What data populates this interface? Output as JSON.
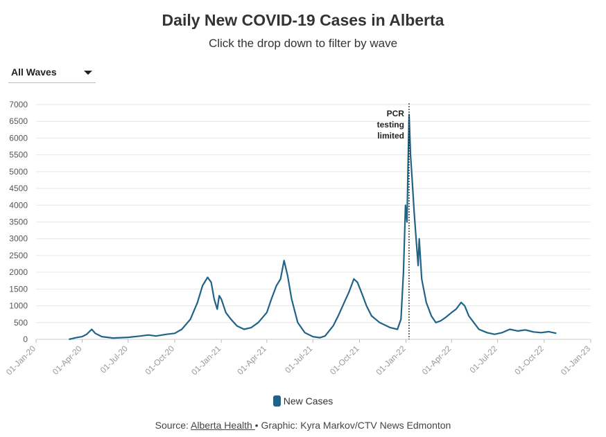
{
  "title": "Daily New COVID-19 Cases in Alberta",
  "subtitle": "Click the drop down to filter by wave",
  "dropdown": {
    "selected": "All Waves"
  },
  "legend": {
    "label": "New Cases"
  },
  "source": {
    "prefix": "Source: ",
    "link_text": "Alberta Health ",
    "suffix": "• Graphic: Kyra Markov/CTV News Edmonton"
  },
  "colors": {
    "series": "#1f6386",
    "grid": "#e6e6e6",
    "annotation_line": "#222222"
  },
  "chart_data": {
    "type": "line",
    "title": "Daily New COVID-19 Cases in Alberta",
    "series_name": "New Cases",
    "ylim": [
      0,
      7000
    ],
    "y_ticks": [
      0,
      500,
      1000,
      1500,
      2000,
      2500,
      3000,
      3500,
      4000,
      4500,
      5000,
      5500,
      6000,
      6500,
      7000
    ],
    "x_ticks": [
      "01-Jan-20",
      "01-Apr-20",
      "01-Jul-20",
      "01-Oct-20",
      "01-Jan-21",
      "01-Apr-21",
      "01-Jul-21",
      "01-Oct-21",
      "01-Jan-22",
      "01-Apr-22",
      "01-Jul-22",
      "01-Oct-22",
      "01-Jan-23"
    ],
    "grid": true,
    "legend_position": "bottom",
    "annotation": {
      "date": "2022-01-07",
      "lines": [
        "PCR",
        "testing",
        "limited"
      ]
    },
    "points": [
      [
        "2020-03-06",
        0
      ],
      [
        "2020-03-20",
        50
      ],
      [
        "2020-04-01",
        80
      ],
      [
        "2020-04-10",
        150
      ],
      [
        "2020-04-20",
        300
      ],
      [
        "2020-04-27",
        180
      ],
      [
        "2020-05-10",
        80
      ],
      [
        "2020-06-01",
        40
      ],
      [
        "2020-07-01",
        60
      ],
      [
        "2020-07-25",
        100
      ],
      [
        "2020-08-10",
        130
      ],
      [
        "2020-08-25",
        100
      ],
      [
        "2020-09-15",
        150
      ],
      [
        "2020-10-01",
        180
      ],
      [
        "2020-10-15",
        300
      ],
      [
        "2020-11-01",
        600
      ],
      [
        "2020-11-15",
        1100
      ],
      [
        "2020-11-25",
        1600
      ],
      [
        "2020-12-05",
        1850
      ],
      [
        "2020-12-12",
        1700
      ],
      [
        "2020-12-18",
        1200
      ],
      [
        "2020-12-24",
        900
      ],
      [
        "2020-12-28",
        1300
      ],
      [
        "2021-01-01",
        1200
      ],
      [
        "2021-01-10",
        800
      ],
      [
        "2021-01-20",
        600
      ],
      [
        "2021-02-01",
        400
      ],
      [
        "2021-02-15",
        300
      ],
      [
        "2021-03-01",
        350
      ],
      [
        "2021-03-15",
        500
      ],
      [
        "2021-04-01",
        800
      ],
      [
        "2021-04-10",
        1200
      ],
      [
        "2021-04-20",
        1600
      ],
      [
        "2021-04-28",
        1800
      ],
      [
        "2021-05-05",
        2350
      ],
      [
        "2021-05-12",
        1900
      ],
      [
        "2021-05-20",
        1200
      ],
      [
        "2021-06-01",
        500
      ],
      [
        "2021-06-15",
        200
      ],
      [
        "2021-07-01",
        80
      ],
      [
        "2021-07-15",
        50
      ],
      [
        "2021-07-25",
        100
      ],
      [
        "2021-08-10",
        400
      ],
      [
        "2021-08-20",
        700
      ],
      [
        "2021-09-01",
        1100
      ],
      [
        "2021-09-10",
        1400
      ],
      [
        "2021-09-20",
        1800
      ],
      [
        "2021-09-27",
        1700
      ],
      [
        "2021-10-05",
        1400
      ],
      [
        "2021-10-15",
        1000
      ],
      [
        "2021-10-25",
        700
      ],
      [
        "2021-11-10",
        500
      ],
      [
        "2021-12-01",
        350
      ],
      [
        "2021-12-15",
        300
      ],
      [
        "2021-12-22",
        600
      ],
      [
        "2021-12-27",
        2000
      ],
      [
        "2021-12-31",
        4000
      ],
      [
        "2022-01-03",
        3500
      ],
      [
        "2022-01-05",
        5200
      ],
      [
        "2022-01-07",
        6700
      ],
      [
        "2022-01-10",
        5500
      ],
      [
        "2022-01-13",
        4800
      ],
      [
        "2022-01-17",
        3800
      ],
      [
        "2022-01-20",
        3200
      ],
      [
        "2022-01-25",
        2200
      ],
      [
        "2022-01-27",
        3000
      ],
      [
        "2022-02-01",
        1800
      ],
      [
        "2022-02-10",
        1100
      ],
      [
        "2022-02-20",
        700
      ],
      [
        "2022-03-01",
        500
      ],
      [
        "2022-03-10",
        550
      ],
      [
        "2022-03-20",
        650
      ],
      [
        "2022-04-01",
        800
      ],
      [
        "2022-04-10",
        900
      ],
      [
        "2022-04-20",
        1100
      ],
      [
        "2022-04-27",
        1000
      ],
      [
        "2022-05-05",
        700
      ],
      [
        "2022-05-15",
        500
      ],
      [
        "2022-05-25",
        300
      ],
      [
        "2022-06-10",
        200
      ],
      [
        "2022-06-25",
        150
      ],
      [
        "2022-07-10",
        200
      ],
      [
        "2022-07-25",
        300
      ],
      [
        "2022-08-10",
        250
      ],
      [
        "2022-08-25",
        280
      ],
      [
        "2022-09-10",
        220
      ],
      [
        "2022-09-25",
        200
      ],
      [
        "2022-10-10",
        230
      ],
      [
        "2022-10-25",
        180
      ]
    ]
  }
}
